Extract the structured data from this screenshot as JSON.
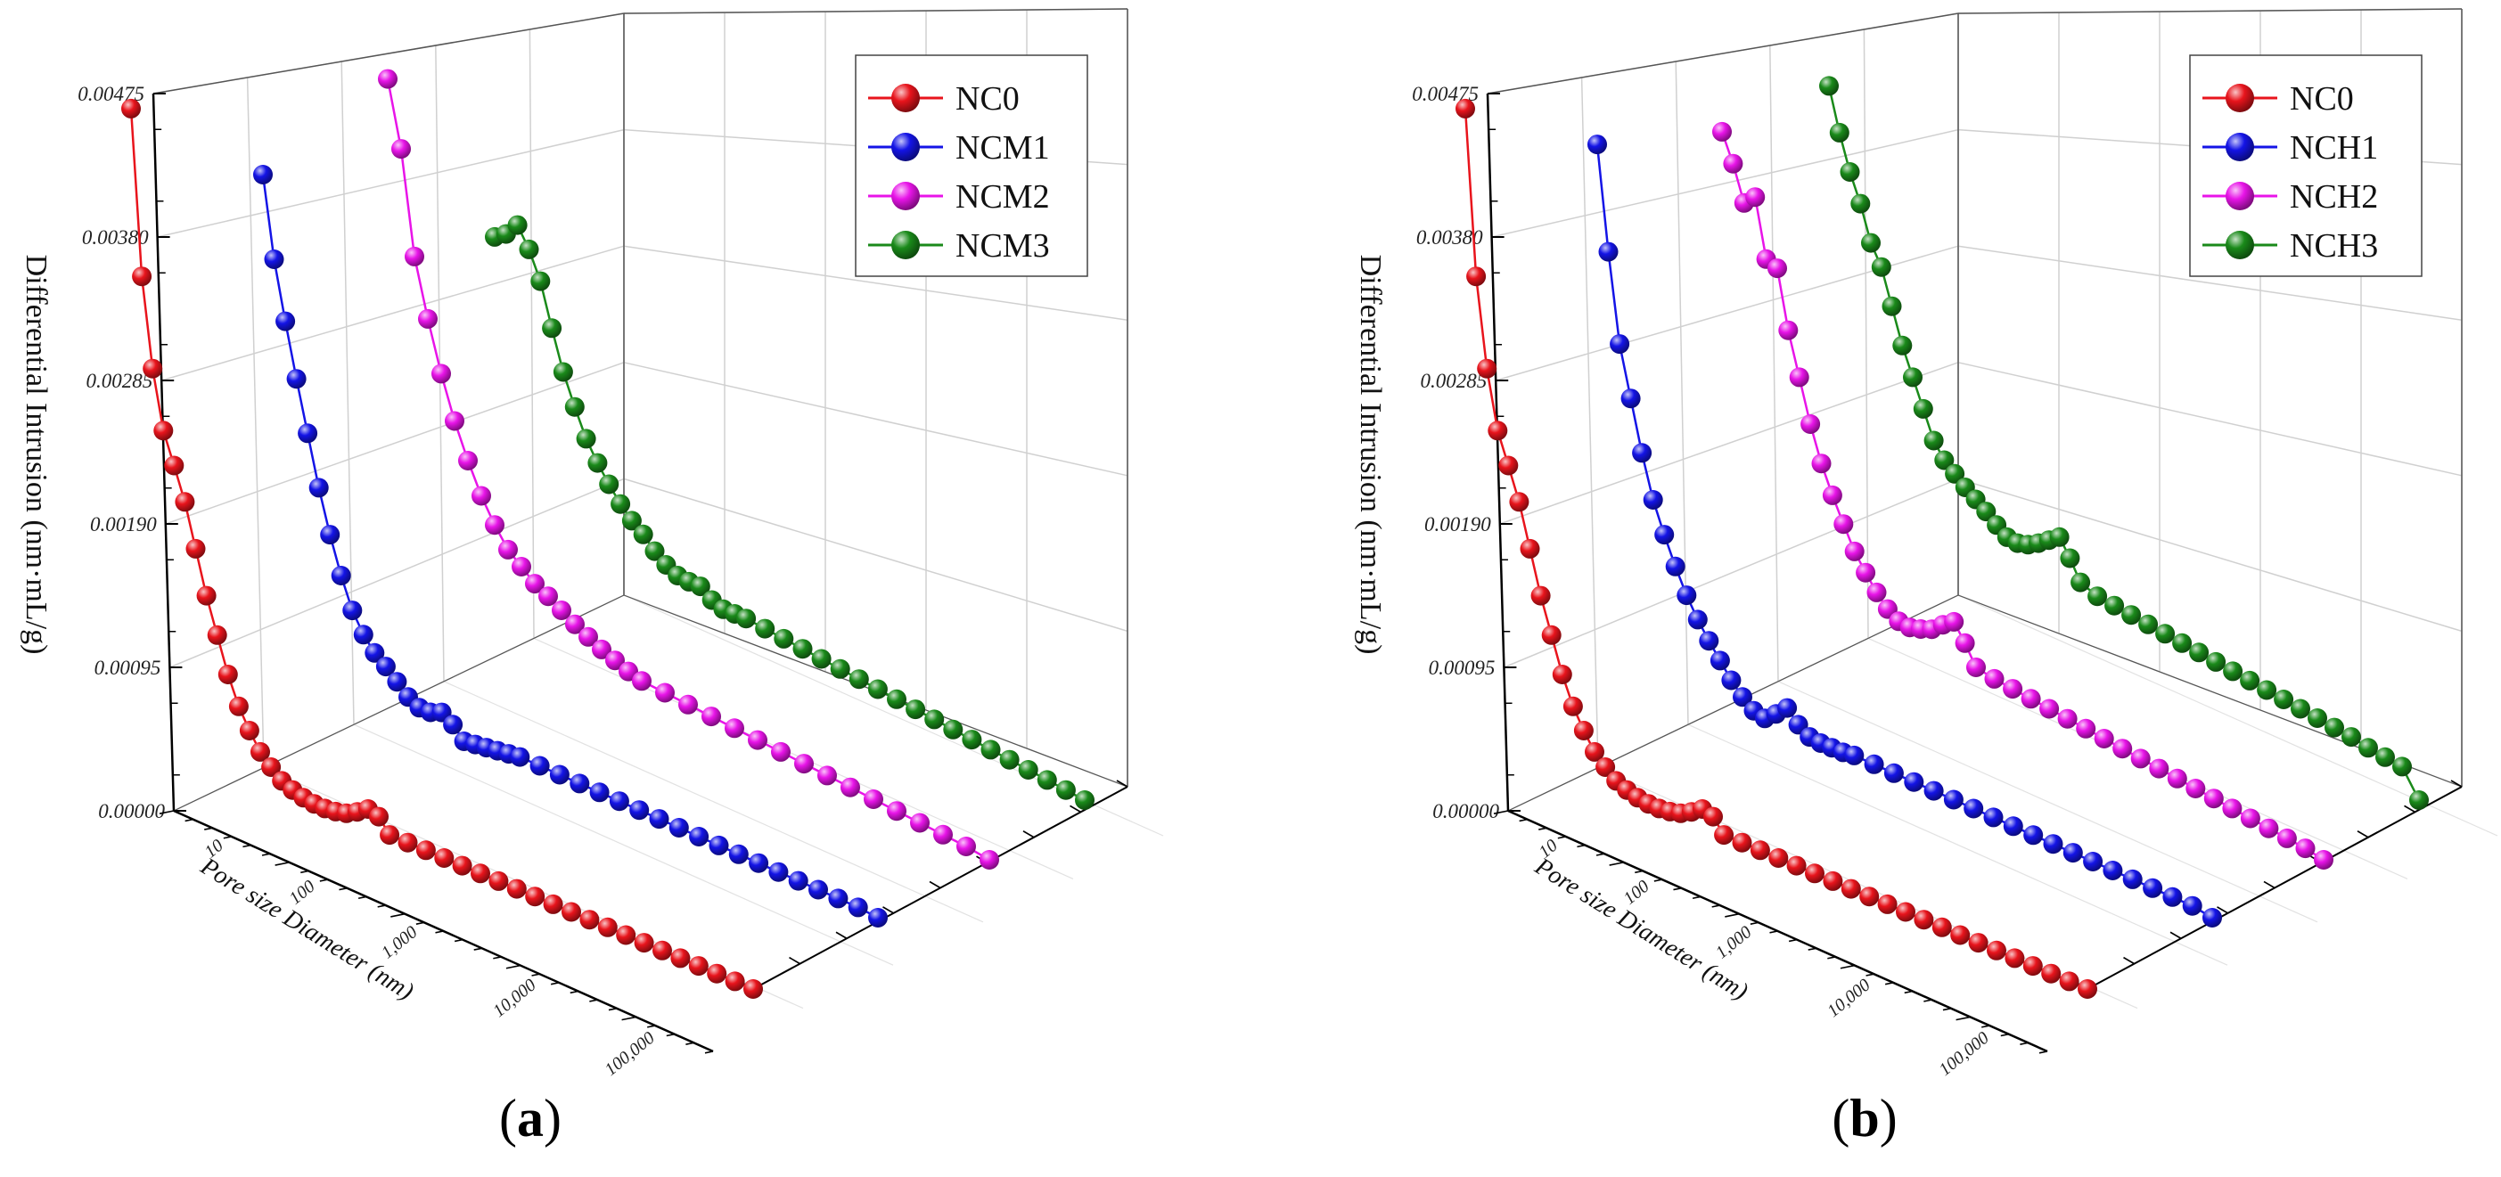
{
  "chart_data": [
    {
      "type": "line",
      "panel_label_open": "(",
      "panel_label_letter": "a",
      "panel_label_close": ")",
      "ylabel": "Differential Intrusion (nm·mL/g)",
      "xlabel": "Pore size Diameter (nm)",
      "ytick_labels": [
        "0.00000",
        "0.00095",
        "0.00190",
        "0.00285",
        "0.00380",
        "0.00475"
      ],
      "ylim": [
        0,
        0.00475
      ],
      "xtick_labels": [
        "10",
        "100",
        "1,000",
        "10,000",
        "100,000"
      ],
      "x_scale": "log",
      "legend_position": "top-right",
      "series": [
        {
          "name": "NC0",
          "color": "#e8141c",
          "values": [
            0.00465,
            0.00355,
            0.00295,
            0.00255,
            0.00233,
            0.0021,
            0.0018,
            0.0015,
            0.00125,
            0.001,
            0.0008,
            0.00065,
            0.00052,
            0.00043,
            0.00035,
            0.0003,
            0.00026,
            0.00023,
            0.00021,
            0.0002,
            0.0002,
            0.00022,
            0.00025,
            0.00021,
            0.0001,
            9.5e-05,
            9e-05,
            8.5e-05,
            8e-05,
            7.5e-05,
            7e-05,
            6.5e-05,
            6e-05,
            5.5e-05,
            5e-05,
            4.5e-05,
            4e-05,
            3.5e-05,
            3e-05,
            2.5e-05,
            2e-05,
            1.5e-05,
            1e-05,
            5e-06,
            0
          ]
        },
        {
          "name": "NCM1",
          "color": "#1414e6",
          "values": [
            0.0038,
            0.00325,
            0.00285,
            0.00248,
            0.00213,
            0.00178,
            0.00148,
            0.00122,
            0.001,
            0.00085,
            0.00074,
            0.00066,
            0.00057,
            0.00048,
            0.00042,
            0.0004,
            0.00041,
            0.00034,
            0.00024,
            0.00023,
            0.00022,
            0.00021,
            0.0002,
            0.00019,
            0.00018,
            0.00017,
            0.00016,
            0.00015,
            0.00014,
            0.00013,
            0.00012,
            0.00011,
            0.0001,
            9e-05,
            8e-05,
            7e-05,
            6e-05,
            5e-05,
            4e-05,
            3e-05,
            2e-05,
            0
          ]
        },
        {
          "name": "NCM2",
          "color": "#e814e8",
          "values": [
            0.00405,
            0.0036,
            0.0029,
            0.0025,
            0.00215,
            0.00185,
            0.0016,
            0.00138,
            0.0012,
            0.00105,
            0.00095,
            0.00085,
            0.00078,
            0.0007,
            0.00062,
            0.00055,
            0.00048,
            0.00042,
            0.00036,
            0.00031,
            0.00029,
            0.00027,
            0.00025,
            0.00023,
            0.00021,
            0.00019,
            0.00017,
            0.00015,
            0.00013,
            0.00011,
            9e-05,
            7e-05,
            5e-05,
            3e-05,
            0
          ]
        },
        {
          "name": "NCM3",
          "color": "#1a8a1a",
          "values": [
            0.00265,
            0.00268,
            0.00275,
            0.0026,
            0.0024,
            0.0021,
            0.00182,
            0.0016,
            0.0014,
            0.00125,
            0.00112,
            0.001,
            0.0009,
            0.00082,
            0.00072,
            0.00064,
            0.00058,
            0.00055,
            0.00053,
            0.00045,
            0.0004,
            0.00038,
            0.00036,
            0.00034,
            0.00032,
            0.0003,
            0.00028,
            0.00026,
            0.00024,
            0.00022,
            0.0002,
            0.00018,
            0.00016,
            0.00014,
            0.00012,
            0.0001,
            8e-05,
            6e-05,
            4e-05,
            2e-05,
            0
          ]
        }
      ]
    },
    {
      "type": "line",
      "panel_label_open": "(",
      "panel_label_letter": "b",
      "panel_label_close": ")",
      "ylabel": "Differential Intrusion (nm·mL/g)",
      "xlabel": "Pore size Diameter (nm)",
      "ytick_labels": [
        "0.00000",
        "0.00095",
        "0.00190",
        "0.00285",
        "0.00380",
        "0.00475"
      ],
      "ylim": [
        0,
        0.00475
      ],
      "xtick_labels": [
        "10",
        "100",
        "1,000",
        "10,000",
        "100,000"
      ],
      "x_scale": "log",
      "legend_position": "top-right",
      "series": [
        {
          "name": "NC0",
          "color": "#e8141c",
          "values": [
            0.00465,
            0.00355,
            0.00295,
            0.00255,
            0.00233,
            0.0021,
            0.0018,
            0.0015,
            0.00125,
            0.001,
            0.0008,
            0.00065,
            0.00052,
            0.00043,
            0.00035,
            0.0003,
            0.00026,
            0.00023,
            0.00021,
            0.0002,
            0.0002,
            0.00022,
            0.00025,
            0.00021,
            0.0001,
            9.5e-05,
            9e-05,
            8.5e-05,
            8e-05,
            7.5e-05,
            7e-05,
            6.5e-05,
            6e-05,
            5.5e-05,
            5e-05,
            4.5e-05,
            4e-05,
            3.5e-05,
            3e-05,
            2.5e-05,
            2e-05,
            1.5e-05,
            1e-05,
            5e-06,
            0
          ]
        },
        {
          "name": "NCH1",
          "color": "#1414e6",
          "values": [
            0.004,
            0.0033,
            0.0027,
            0.00235,
            0.002,
            0.0017,
            0.00148,
            0.00128,
            0.0011,
            0.00095,
            0.00082,
            0.0007,
            0.00058,
            0.00048,
            0.0004,
            0.00036,
            0.0004,
            0.00045,
            0.00035,
            0.00028,
            0.00025,
            0.00023,
            0.00021,
            0.0002,
            0.00019,
            0.00018,
            0.00017,
            0.00016,
            0.00015,
            0.00014,
            0.00013,
            0.00012,
            0.00011,
            0.0001,
            9e-05,
            8e-05,
            7e-05,
            6e-05,
            5e-05,
            4e-05,
            3e-05,
            0
          ]
        },
        {
          "name": "NCH2",
          "color": "#e814e8",
          "values": [
            0.0037,
            0.0035,
            0.00325,
            0.0033,
            0.0029,
            0.00285,
            0.00245,
            0.00215,
            0.00185,
            0.0016,
            0.0014,
            0.00122,
            0.00105,
            0.00092,
            0.0008,
            0.0007,
            0.00063,
            0.0006,
            0.0006,
            0.00061,
            0.00065,
            0.00068,
            0.00055,
            0.0004,
            0.00037,
            0.00035,
            0.00033,
            0.00031,
            0.00029,
            0.00027,
            0.00025,
            0.00023,
            0.00021,
            0.00019,
            0.00017,
            0.00015,
            0.00013,
            0.00011,
            9e-05,
            7e-05,
            5e-05,
            3e-05,
            0
          ]
        },
        {
          "name": "NCH3",
          "color": "#1a8a1a",
          "values": [
            0.00365,
            0.00335,
            0.0031,
            0.0029,
            0.00265,
            0.0025,
            0.00225,
            0.002,
            0.0018,
            0.0016,
            0.0014,
            0.00128,
            0.0012,
            0.00112,
            0.00105,
            0.00098,
            0.0009,
            0.00083,
            0.0008,
            0.0008,
            0.00082,
            0.00085,
            0.00088,
            0.00075,
            0.0006,
            0.00055,
            0.00053,
            0.00051,
            0.00049,
            0.00047,
            0.00045,
            0.00043,
            0.00041,
            0.00039,
            0.00037,
            0.00035,
            0.00033,
            0.00031,
            0.00029,
            0.00027,
            0.00025,
            0.00022,
            0.0002,
            0.00018,
            0
          ]
        }
      ]
    }
  ]
}
